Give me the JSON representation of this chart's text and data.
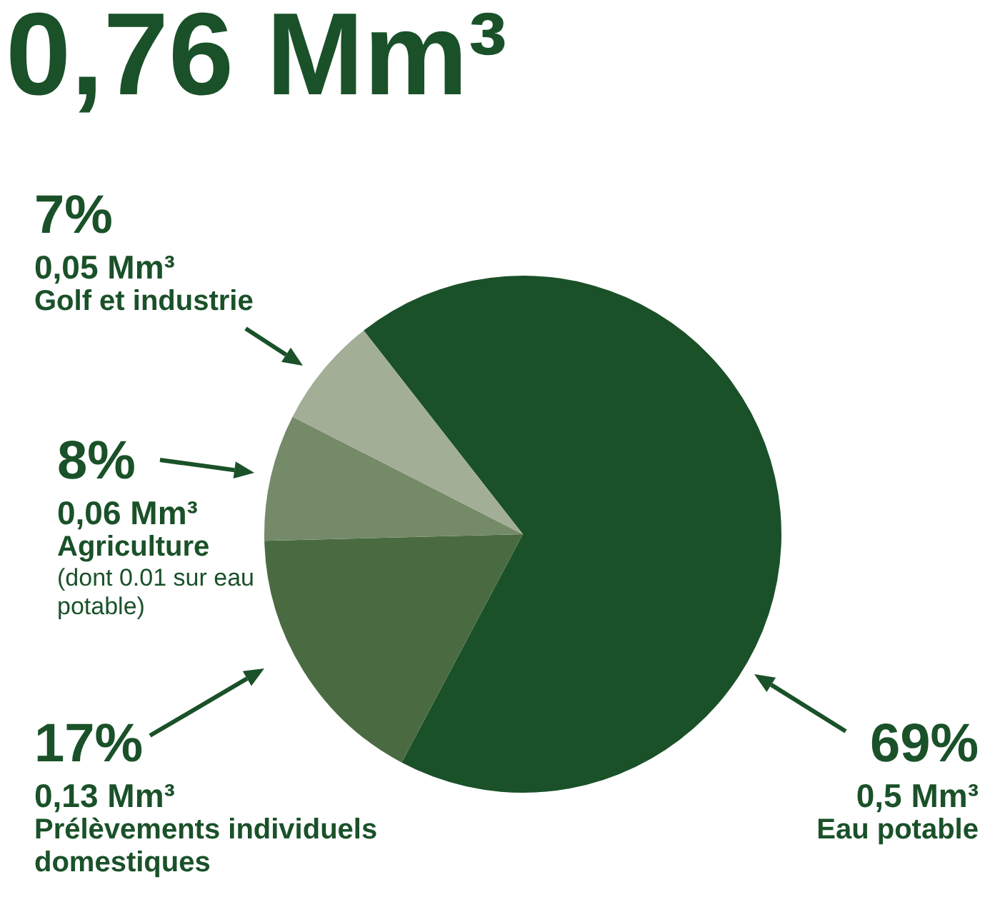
{
  "chart_data": {
    "type": "pie",
    "title": "0,76 Mm³",
    "categories": [
      "Eau potable",
      "Prélèvements individuels domestiques",
      "Agriculture",
      "Golf et industrie"
    ],
    "values": [
      69,
      17,
      8,
      7
    ],
    "colors": [
      "#1a5129",
      "#4a6b42",
      "#758a68",
      "#a3ae97"
    ],
    "value_labels": [
      "69%",
      "17%",
      "8%",
      "7%"
    ],
    "annotations": [
      "0,5 Mm³",
      "0,13 Mm³",
      "0,06 Mm³",
      "(dont 0.01 sur eau potable)",
      "0,05 Mm³"
    ],
    "legend": false
  }
}
